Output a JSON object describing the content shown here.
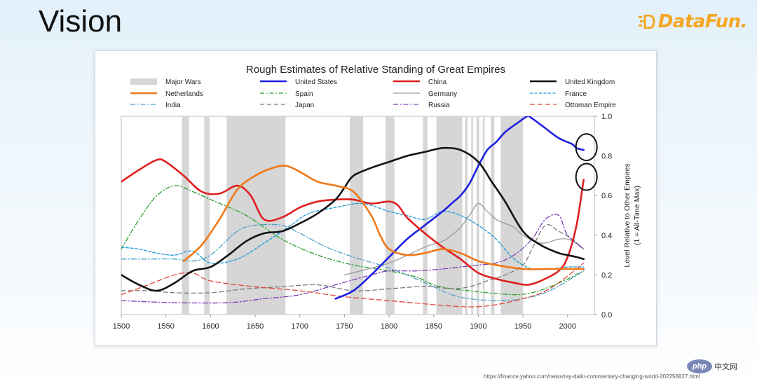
{
  "slide": {
    "title": "Vision",
    "logo_text": "DataFun.",
    "source": "https://finance.yahoo.com/news/ray-dalio-commentary-changing-world-202256827.html",
    "badge_logo": "php",
    "badge_text": "中文网"
  },
  "chart_data": {
    "type": "line",
    "title": "Rough Estimates of Relative Standing of Great Empires",
    "ylabel": "Level Relative to Other Empires (1 = All-Time Max)",
    "ylabel_line1": "Level Relative to Other Empires",
    "ylabel_line2": "(1 = All-Time Max)",
    "xlim": [
      1500,
      2030
    ],
    "ylim": [
      0,
      1.0
    ],
    "x_ticks": [
      "1500",
      "1550",
      "1600",
      "1650",
      "1700",
      "1750",
      "1800",
      "1850",
      "1900",
      "1950",
      "2000"
    ],
    "y_ticks": [
      "0.0",
      "0.2",
      "0.4",
      "0.6",
      "0.8",
      "1.0"
    ],
    "grid": false,
    "legend_position": "top",
    "wars_label": "Major Wars",
    "wars_color": "#d6d6d6",
    "major_wars": [
      [
        1568,
        1576
      ],
      [
        1593,
        1599
      ],
      [
        1618,
        1684
      ],
      [
        1756,
        1771
      ],
      [
        1796,
        1806
      ],
      [
        1838,
        1843
      ],
      [
        1853,
        1882
      ],
      [
        1885,
        1888
      ],
      [
        1892,
        1894
      ],
      [
        1898,
        1901
      ],
      [
        1905,
        1907
      ],
      [
        1914,
        1918
      ],
      [
        1925,
        1950
      ]
    ],
    "series": [
      {
        "name": "United States",
        "color": "#1f1fe0",
        "width": 2.6,
        "dash": "",
        "x": [
          1740,
          1760,
          1780,
          1800,
          1820,
          1840,
          1860,
          1870,
          1880,
          1890,
          1900,
          1910,
          1920,
          1930,
          1945,
          1955,
          1960,
          1975,
          1990,
          2005,
          2010,
          2018
        ],
        "y": [
          0.08,
          0.12,
          0.2,
          0.29,
          0.38,
          0.45,
          0.52,
          0.56,
          0.6,
          0.66,
          0.75,
          0.83,
          0.87,
          0.92,
          0.97,
          1.0,
          0.99,
          0.94,
          0.89,
          0.86,
          0.84,
          0.83
        ]
      },
      {
        "name": "China",
        "color": "#e01f1f",
        "width": 2.6,
        "dash": "",
        "x": [
          1500,
          1520,
          1540,
          1550,
          1570,
          1590,
          1610,
          1630,
          1645,
          1660,
          1680,
          1700,
          1720,
          1740,
          1760,
          1780,
          1800,
          1810,
          1820,
          1840,
          1860,
          1880,
          1900,
          1920,
          1940,
          1955,
          1970,
          1990,
          2000,
          2010,
          2018
        ],
        "y": [
          0.67,
          0.73,
          0.78,
          0.77,
          0.7,
          0.62,
          0.61,
          0.65,
          0.6,
          0.48,
          0.49,
          0.54,
          0.57,
          0.58,
          0.58,
          0.56,
          0.57,
          0.55,
          0.49,
          0.41,
          0.34,
          0.28,
          0.21,
          0.18,
          0.16,
          0.15,
          0.17,
          0.22,
          0.29,
          0.45,
          0.68
        ]
      },
      {
        "name": "United Kingdom",
        "color": "#111111",
        "width": 2.6,
        "dash": "",
        "x": [
          1500,
          1520,
          1540,
          1560,
          1580,
          1600,
          1620,
          1640,
          1660,
          1680,
          1700,
          1720,
          1740,
          1750,
          1760,
          1780,
          1800,
          1820,
          1840,
          1860,
          1880,
          1900,
          1915,
          1930,
          1950,
          1970,
          1990,
          2000,
          2010,
          2018
        ],
        "y": [
          0.2,
          0.15,
          0.12,
          0.16,
          0.22,
          0.24,
          0.3,
          0.37,
          0.41,
          0.42,
          0.46,
          0.51,
          0.58,
          0.64,
          0.7,
          0.74,
          0.77,
          0.8,
          0.82,
          0.84,
          0.83,
          0.77,
          0.67,
          0.57,
          0.42,
          0.35,
          0.31,
          0.3,
          0.29,
          0.28
        ]
      },
      {
        "name": "Netherlands",
        "color": "#f07818",
        "width": 2.6,
        "dash": "",
        "x": [
          1570,
          1590,
          1610,
          1630,
          1650,
          1670,
          1685,
          1700,
          1720,
          1740,
          1760,
          1780,
          1790,
          1800,
          1820,
          1840,
          1860,
          1880,
          1900,
          1920,
          1950,
          1980,
          2018
        ],
        "y": [
          0.27,
          0.35,
          0.48,
          0.63,
          0.7,
          0.74,
          0.75,
          0.72,
          0.67,
          0.65,
          0.62,
          0.5,
          0.4,
          0.33,
          0.3,
          0.31,
          0.33,
          0.31,
          0.27,
          0.25,
          0.23,
          0.23,
          0.23
        ]
      },
      {
        "name": "Spain",
        "color": "#2ca02c",
        "width": 1.3,
        "dash": "6,3,1.5,3",
        "x": [
          1500,
          1520,
          1540,
          1560,
          1580,
          1600,
          1640,
          1680,
          1720,
          1760,
          1800,
          1830,
          1850,
          1870,
          1890,
          1910,
          1940,
          1960,
          1980,
          2000,
          2018
        ],
        "y": [
          0.33,
          0.48,
          0.6,
          0.65,
          0.62,
          0.58,
          0.5,
          0.38,
          0.3,
          0.25,
          0.22,
          0.19,
          0.15,
          0.13,
          0.12,
          0.11,
          0.1,
          0.11,
          0.14,
          0.18,
          0.22
        ]
      },
      {
        "name": "Germany",
        "color": "#9a9a9a",
        "width": 1.3,
        "dash": "",
        "x": [
          1750,
          1800,
          1840,
          1860,
          1870,
          1880,
          1890,
          1900,
          1910,
          1920,
          1930,
          1940,
          1950,
          1970,
          1990,
          2000,
          2010,
          2018
        ],
        "y": [
          0.2,
          0.26,
          0.34,
          0.37,
          0.4,
          0.44,
          0.5,
          0.56,
          0.52,
          0.48,
          0.46,
          0.44,
          0.4,
          0.36,
          0.38,
          0.38,
          0.36,
          0.33
        ]
      },
      {
        "name": "France",
        "color": "#1a9ad8",
        "width": 1.3,
        "dash": "4,2.5",
        "x": [
          1500,
          1520,
          1540,
          1560,
          1580,
          1600,
          1630,
          1660,
          1690,
          1710,
          1740,
          1770,
          1800,
          1820,
          1840,
          1860,
          1880,
          1900,
          1920,
          1940,
          1960,
          1980,
          2000,
          2018
        ],
        "y": [
          0.34,
          0.33,
          0.31,
          0.3,
          0.32,
          0.26,
          0.28,
          0.36,
          0.45,
          0.51,
          0.54,
          0.56,
          0.52,
          0.5,
          0.48,
          0.52,
          0.5,
          0.45,
          0.38,
          0.28,
          0.23,
          0.23,
          0.24,
          0.24
        ]
      },
      {
        "name": "India",
        "color": "#4aa0c8",
        "width": 1.3,
        "dash": "7,3,1.5,3",
        "x": [
          1500,
          1530,
          1560,
          1580,
          1600,
          1630,
          1650,
          1680,
          1700,
          1730,
          1760,
          1790,
          1820,
          1850,
          1870,
          1890,
          1920,
          1950,
          1980,
          2018
        ],
        "y": [
          0.28,
          0.28,
          0.28,
          0.27,
          0.3,
          0.42,
          0.45,
          0.45,
          0.41,
          0.34,
          0.29,
          0.25,
          0.2,
          0.14,
          0.1,
          0.08,
          0.07,
          0.08,
          0.12,
          0.22
        ]
      },
      {
        "name": "Japan",
        "color": "#7a7a7a",
        "width": 1.3,
        "dash": "6,4",
        "x": [
          1500,
          1530,
          1560,
          1600,
          1640,
          1680,
          1720,
          1760,
          1800,
          1830,
          1850,
          1870,
          1890,
          1910,
          1930,
          1950,
          1960,
          1975,
          1990,
          2005,
          2018
        ],
        "y": [
          0.12,
          0.12,
          0.11,
          0.11,
          0.13,
          0.14,
          0.15,
          0.12,
          0.13,
          0.14,
          0.14,
          0.13,
          0.14,
          0.17,
          0.2,
          0.25,
          0.33,
          0.45,
          0.42,
          0.38,
          0.33
        ]
      },
      {
        "name": "Russia",
        "color": "#7d42b8",
        "width": 1.3,
        "dash": "7,3,1.5,3",
        "x": [
          1500,
          1560,
          1620,
          1660,
          1700,
          1740,
          1780,
          1800,
          1830,
          1860,
          1880,
          1900,
          1920,
          1940,
          1960,
          1975,
          1990,
          2000,
          2018
        ],
        "y": [
          0.07,
          0.06,
          0.06,
          0.08,
          0.1,
          0.15,
          0.2,
          0.22,
          0.22,
          0.23,
          0.24,
          0.25,
          0.26,
          0.3,
          0.38,
          0.48,
          0.5,
          0.4,
          0.33
        ]
      },
      {
        "name": "Ottoman Empire",
        "color": "#e04a3a",
        "width": 1.3,
        "dash": "7,4",
        "x": [
          1500,
          1530,
          1560,
          1580,
          1600,
          1650,
          1700,
          1750,
          1800,
          1850,
          1880,
          1900,
          1920,
          1950,
          1980,
          2018
        ],
        "y": [
          0.1,
          0.15,
          0.2,
          0.21,
          0.17,
          0.14,
          0.12,
          0.09,
          0.07,
          0.05,
          0.04,
          0.04,
          0.05,
          0.08,
          0.13,
          0.26
        ]
      }
    ]
  }
}
